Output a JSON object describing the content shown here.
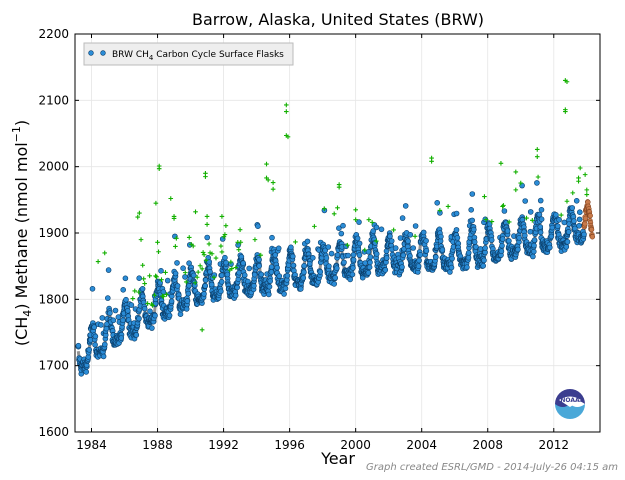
{
  "chart_data": {
    "type": "scatter",
    "title": "Barrow, Alaska, United States (BRW)",
    "xlabel": "Year",
    "ylabel_prefix": "(CH",
    "ylabel_sub": "4",
    "ylabel_suffix": ") Methane (nmol mol",
    "ylabel_sup": "−1",
    "ylabel_end": ")",
    "xlim": [
      1983.0,
      2014.8
    ],
    "ylim": [
      1600,
      2200
    ],
    "xticks": [
      1984,
      1988,
      1992,
      1996,
      2000,
      2004,
      2008,
      2012
    ],
    "yticks": [
      1600,
      1700,
      1800,
      1900,
      2000,
      2100,
      2200
    ],
    "grid": true,
    "legend": {
      "position": "top-left",
      "entry_prefix": "BRW CH",
      "entry_sub": "4",
      "entry_suffix": " Carbon Cycle Surface Flasks"
    },
    "trend": {
      "x": [
        1983.2,
        1985,
        1988,
        1990,
        1992,
        1995,
        1998,
        2000,
        2003,
        2006,
        2008,
        2010,
        2012,
        2014.2
      ],
      "y_mean": [
        1710,
        1745,
        1790,
        1812,
        1826,
        1835,
        1848,
        1858,
        1866,
        1868,
        1878,
        1888,
        1898,
        1910
      ],
      "seasonal_amplitude": 28
    },
    "outliers": [
      {
        "x": 1984.4,
        "y": 1857
      },
      {
        "x": 1984.8,
        "y": 1870
      },
      {
        "x": 1986.8,
        "y": 1924
      },
      {
        "x": 1986.9,
        "y": 1930
      },
      {
        "x": 1987.0,
        "y": 1890
      },
      {
        "x": 1987.9,
        "y": 1945
      },
      {
        "x": 1988.1,
        "y": 1997
      },
      {
        "x": 1988.1,
        "y": 2001
      },
      {
        "x": 1988.8,
        "y": 1952
      },
      {
        "x": 1989.0,
        "y": 1922
      },
      {
        "x": 1989.0,
        "y": 1925
      },
      {
        "x": 1990.3,
        "y": 1932
      },
      {
        "x": 1990.7,
        "y": 1754
      },
      {
        "x": 1990.9,
        "y": 1985
      },
      {
        "x": 1990.9,
        "y": 1990
      },
      {
        "x": 1991.0,
        "y": 1925
      },
      {
        "x": 1991.9,
        "y": 1925
      },
      {
        "x": 1993.0,
        "y": 1905
      },
      {
        "x": 1993.9,
        "y": 1890
      },
      {
        "x": 1994.6,
        "y": 2004
      },
      {
        "x": 1994.6,
        "y": 1983
      },
      {
        "x": 1994.7,
        "y": 1980
      },
      {
        "x": 1995.0,
        "y": 1966
      },
      {
        "x": 1995.0,
        "y": 1976
      },
      {
        "x": 1995.8,
        "y": 2093
      },
      {
        "x": 1995.8,
        "y": 2083
      },
      {
        "x": 1995.8,
        "y": 2047
      },
      {
        "x": 1995.9,
        "y": 2045
      },
      {
        "x": 1997.5,
        "y": 1910
      },
      {
        "x": 1998.7,
        "y": 1929
      },
      {
        "x": 1998.9,
        "y": 1938
      },
      {
        "x": 1999.0,
        "y": 1973
      },
      {
        "x": 1999.0,
        "y": 1969
      },
      {
        "x": 2000.0,
        "y": 1935
      },
      {
        "x": 2000.0,
        "y": 1920
      },
      {
        "x": 2000.8,
        "y": 1920
      },
      {
        "x": 2001.0,
        "y": 1916
      },
      {
        "x": 2003.6,
        "y": 1895
      },
      {
        "x": 2004.6,
        "y": 2013
      },
      {
        "x": 2004.6,
        "y": 2008
      },
      {
        "x": 2005.6,
        "y": 1940
      },
      {
        "x": 2007.8,
        "y": 1955
      },
      {
        "x": 2008.8,
        "y": 2005
      },
      {
        "x": 2008.9,
        "y": 1940
      },
      {
        "x": 2009.7,
        "y": 1992
      },
      {
        "x": 2009.7,
        "y": 1965
      },
      {
        "x": 2011.0,
        "y": 2026
      },
      {
        "x": 2011.0,
        "y": 2015
      },
      {
        "x": 2012.7,
        "y": 2130
      },
      {
        "x": 2012.8,
        "y": 2128
      },
      {
        "x": 2012.7,
        "y": 2083
      },
      {
        "x": 2012.7,
        "y": 2086
      },
      {
        "x": 2013.5,
        "y": 1978
      },
      {
        "x": 2013.5,
        "y": 1983
      },
      {
        "x": 2013.6,
        "y": 1998
      },
      {
        "x": 2013.9,
        "y": 1988
      },
      {
        "x": 2014.0,
        "y": 1965
      },
      {
        "x": 2014.0,
        "y": 1958
      }
    ],
    "preliminary_range": [
      2013.85,
      2014.35
    ],
    "colors": {
      "flask": "#2b8cd6",
      "flask_edge": "#0b3f6b",
      "trend": "#777777",
      "outlier": "#13b000",
      "preliminary": "#c87a4a"
    }
  },
  "credit": "Graph created ESRL/GMD - 2014-July-26 04:15 am",
  "logo": {
    "icon": "noaa-logo-icon",
    "text": "NOAA"
  }
}
